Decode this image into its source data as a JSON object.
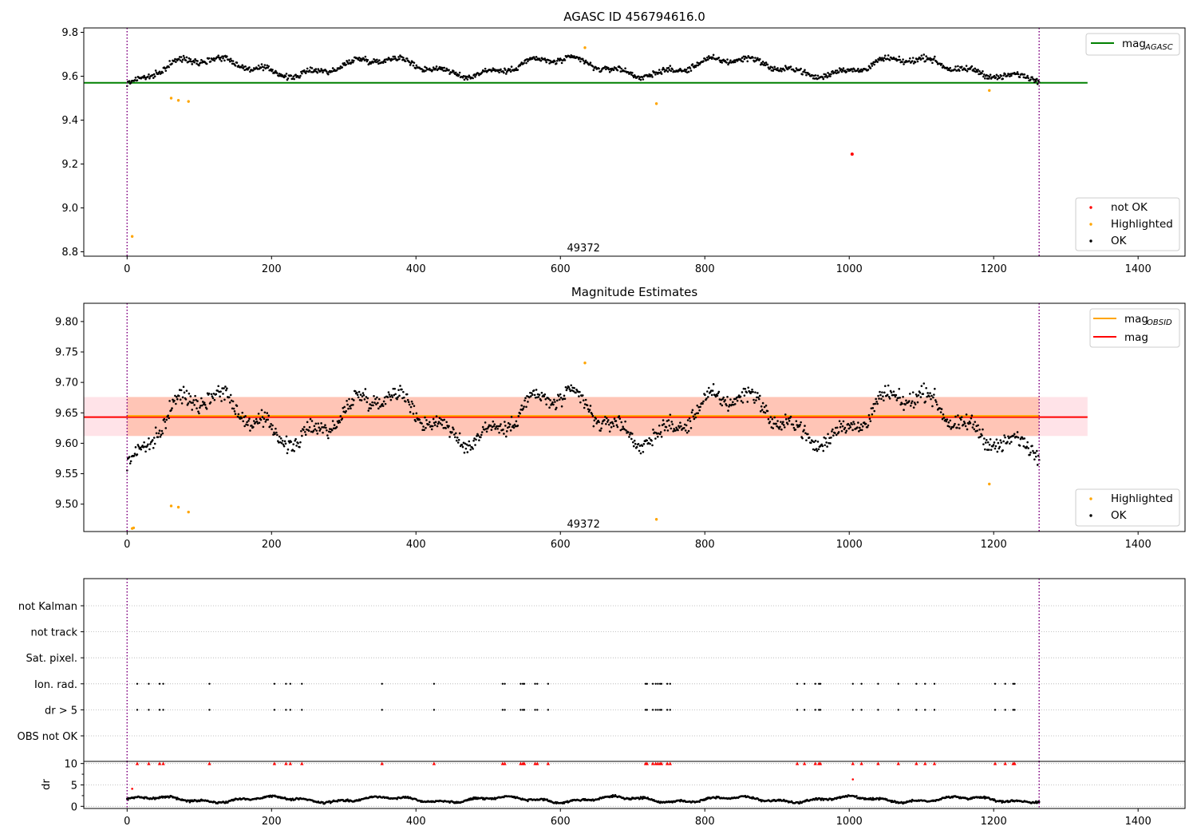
{
  "colors": {
    "ok": "#000000",
    "highlighted": "#ffa500",
    "not_ok": "#ff0000",
    "agasc_line": "#008000",
    "obsid_line": "#ffa500",
    "mag_line": "#ff0000",
    "band_red": "#ffc0cb",
    "band_orange": "#ffa07a",
    "obs_boundary": "#800080",
    "grid": "#b0b0b0"
  },
  "chart_data": [
    {
      "type": "scatter",
      "title": "AGASC ID 456794616.0",
      "xlim": [
        -60,
        1465
      ],
      "ylim": [
        8.78,
        9.82
      ],
      "xticks": [
        0,
        200,
        400,
        600,
        800,
        1000,
        1200,
        1400
      ],
      "yticks": [
        8.8,
        9.0,
        9.2,
        9.4,
        9.6,
        9.8
      ],
      "yticklabels": [
        "8.8",
        "9.0",
        "9.2",
        "9.4",
        "9.6",
        "9.8"
      ],
      "obs_boundaries": [
        0,
        1263
      ],
      "obsid_label": {
        "text": "49372",
        "x": 632,
        "y": 8.82
      },
      "reference_lines": [
        {
          "name": "mag_AGASC",
          "y": 9.57,
          "x_range": [
            -60,
            1330
          ],
          "color": "#008000"
        }
      ],
      "highlighted_points": [
        [
          7,
          8.87
        ],
        [
          61,
          9.5
        ],
        [
          71,
          9.49
        ],
        [
          85,
          9.485
        ],
        [
          634,
          9.73
        ],
        [
          733,
          9.475
        ],
        [
          1194,
          9.535
        ]
      ],
      "not_ok_points": [
        [
          1004,
          9.245
        ]
      ],
      "ok_series": {
        "x_start": 0,
        "x_end": 1263,
        "count": 1180,
        "baseline_mag": 9.643
      },
      "legend_lines": [
        {
          "label": "mag",
          "sub": "AGASC",
          "color": "#008000"
        }
      ],
      "legend_points": [
        {
          "label": "not OK",
          "color": "#ff0000"
        },
        {
          "label": "Highlighted",
          "color": "#ffa500"
        },
        {
          "label": "OK",
          "color": "#000000"
        }
      ]
    },
    {
      "type": "scatter",
      "title": "Magnitude Estimates",
      "xlim": [
        -60,
        1465
      ],
      "ylim": [
        9.455,
        9.83
      ],
      "xticks": [
        0,
        200,
        400,
        600,
        800,
        1000,
        1200,
        1400
      ],
      "yticks": [
        9.5,
        9.55,
        9.6,
        9.65,
        9.7,
        9.75,
        9.8
      ],
      "yticklabels": [
        "9.50",
        "9.55",
        "9.60",
        "9.65",
        "9.70",
        "9.75",
        "9.80"
      ],
      "obs_boundaries": [
        0,
        1263
      ],
      "obsid_label": {
        "text": "49372",
        "x": 632,
        "y": 9.468
      },
      "reference_lines": [
        {
          "name": "mag",
          "y": 9.643,
          "x_range": [
            -60,
            1330
          ],
          "color": "#ff0000"
        },
        {
          "name": "mag_OBSID",
          "y": 9.645,
          "x_range": [
            0,
            1263
          ],
          "color": "#ffa500"
        }
      ],
      "bands": [
        {
          "y_low": 9.612,
          "y_high": 9.676,
          "x_range": [
            -60,
            1330
          ],
          "color": "#ffc0cb"
        },
        {
          "y_low": 9.612,
          "y_high": 9.676,
          "x_range": [
            0,
            1263
          ],
          "color": "#ffa07a"
        }
      ],
      "highlighted_points": [
        [
          7,
          9.46
        ],
        [
          9,
          9.461
        ],
        [
          61,
          9.497
        ],
        [
          71,
          9.495
        ],
        [
          85,
          9.487
        ],
        [
          634,
          9.732
        ],
        [
          733,
          9.475
        ],
        [
          1194,
          9.533
        ]
      ],
      "ok_series": {
        "x_start": 0,
        "x_end": 1263,
        "count": 1180,
        "baseline_mag": 9.643
      },
      "legend_lines": [
        {
          "label": "mag",
          "sub": "OBSID",
          "color": "#ffa500"
        },
        {
          "label": "mag",
          "sub": "",
          "color": "#ff0000"
        }
      ],
      "legend_points": [
        {
          "label": "Highlighted",
          "color": "#ffa500"
        },
        {
          "label": "OK",
          "color": "#000000"
        }
      ]
    },
    {
      "type": "scatter",
      "title": "",
      "xlim": [
        -60,
        1465
      ],
      "categories": [
        "not Kalman",
        "not track",
        "Sat. pixel.",
        "Ion. rad.",
        "dr > 5",
        "OBS not OK"
      ],
      "obs_boundaries": [
        0,
        1263
      ],
      "flag_x": [
        14,
        30,
        45,
        50,
        114,
        204,
        220,
        226,
        242,
        353,
        425,
        520,
        523,
        545,
        548,
        550,
        565,
        568,
        583,
        718,
        720,
        728,
        732,
        735,
        738,
        740,
        748,
        752,
        928,
        938,
        953,
        958,
        960,
        1005,
        1017,
        1040,
        1068,
        1093,
        1105,
        1118,
        1202,
        1216,
        1227,
        1229
      ],
      "flags": {
        "not Kalman": [],
        "not track": [],
        "Sat. pixel.": [],
        "Ion. rad.": "flag_x",
        "dr > 5": "flag_x",
        "OBS not OK": []
      }
    },
    {
      "type": "scatter",
      "title": "",
      "xlim": [
        -60,
        1465
      ],
      "ylim": [
        -0.5,
        10.5
      ],
      "ylabel": "dr",
      "yticks": [
        0,
        5,
        10
      ],
      "yticklabels": [
        "0",
        "5",
        "10"
      ],
      "obs_boundaries": [
        0,
        1263
      ],
      "clipped_at": 10,
      "outlier_points": [
        [
          7,
          4.1
        ],
        [
          1005,
          6.3
        ]
      ],
      "dr_series": {
        "x_start": 0,
        "x_end": 1263,
        "count": 1180,
        "baseline": 1.6
      }
    }
  ]
}
